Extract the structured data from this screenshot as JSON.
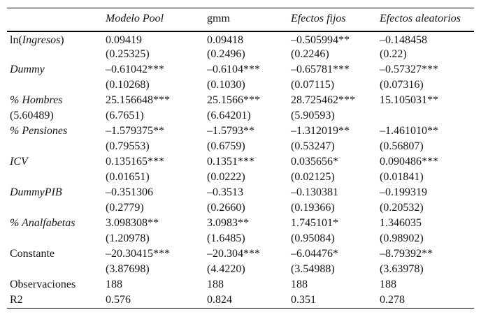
{
  "table": {
    "columns": [
      {
        "label": "Modelo Pool",
        "italic": true
      },
      {
        "label": "gmm",
        "italic": false
      },
      {
        "label": "Efectos fijos",
        "italic": true
      },
      {
        "label": "Efectos aleatorios",
        "italic": true
      }
    ],
    "lines": [
      {
        "label": [
          {
            "text": "ln(",
            "italic": false
          },
          {
            "text": "Ingresos",
            "italic": true
          },
          {
            "text": ")",
            "italic": false
          }
        ],
        "cells": [
          "0.09419",
          "0.09418",
          "–0.505994**",
          "–0.148458"
        ]
      },
      {
        "label": [],
        "cells": [
          "(0.25325)",
          "(0.2496)",
          "(0.2246)",
          "(0.22)"
        ]
      },
      {
        "label": [
          {
            "text": "Dummy",
            "italic": true
          }
        ],
        "cells": [
          "–0.61042***",
          "–0.6104***",
          "–0.65781***",
          "–0.57327***"
        ]
      },
      {
        "label": [],
        "cells": [
          "(0.10268)",
          "(0.1030)",
          "(0.07115)",
          "(0.07316)"
        ]
      },
      {
        "label": [
          {
            "text": "% Hombres",
            "italic": true
          }
        ],
        "cells": [
          "25.156648***",
          "25.1566***",
          "28.725462***",
          "15.105031**"
        ]
      },
      {
        "label": [
          {
            "text": "(5.60489)",
            "italic": false
          }
        ],
        "cells": [
          "(6.7651)",
          "(6.64201)",
          "(5.90593)",
          ""
        ]
      },
      {
        "label": [
          {
            "text": "% Pensiones",
            "italic": true
          }
        ],
        "cells": [
          "–1.579375**",
          "–1.5793**",
          "–1.312019**",
          "–1.461010**"
        ]
      },
      {
        "label": [],
        "cells": [
          "(0.79553)",
          "(0.6759)",
          "(0.53247)",
          "(0.56807)"
        ]
      },
      {
        "label": [
          {
            "text": "ICV",
            "italic": true
          }
        ],
        "cells": [
          "0.135165***",
          "0.1351***",
          "0.035656*",
          "0.090486***"
        ]
      },
      {
        "label": [],
        "cells": [
          "(0.01651)",
          "(0.0222)",
          "(0.02125)",
          "(0.01841)"
        ]
      },
      {
        "label": [
          {
            "text": "DummyPIB",
            "italic": true
          }
        ],
        "cells": [
          "–0.351306",
          "–0.3513",
          "–0.130381",
          "–0.199319"
        ]
      },
      {
        "label": [],
        "cells": [
          "(0.2779)",
          "(0.2660)",
          "(0.19366)",
          "(0.20532)"
        ]
      },
      {
        "label": [
          {
            "text": "% Analfabetas",
            "italic": true
          }
        ],
        "cells": [
          "3.098308**",
          "3.0983**",
          "1.745101*",
          "1.346035"
        ]
      },
      {
        "label": [],
        "cells": [
          "(1.20978)",
          "(1.6485)",
          "(0.95084)",
          "(0.98902)"
        ]
      },
      {
        "label": [
          {
            "text": "Constante",
            "italic": false
          }
        ],
        "cells": [
          "–20.30415***",
          "–20.304***",
          "–6.04476*",
          "–8.79392**"
        ]
      },
      {
        "label": [],
        "cells": [
          "(3.87698)",
          "(4.4220)",
          "(3.54988)",
          "(3.63978)"
        ]
      },
      {
        "label": [
          {
            "text": "Observaciones",
            "italic": false
          }
        ],
        "cells": [
          "188",
          "188",
          "188",
          "188"
        ]
      },
      {
        "label": [
          {
            "text": "R2",
            "italic": false
          }
        ],
        "cells": [
          "0.576",
          "0.824",
          "0.351",
          "0.278"
        ]
      }
    ],
    "colors": {
      "text": "#161616",
      "rule": "#000000",
      "background": "#ffffff"
    }
  }
}
